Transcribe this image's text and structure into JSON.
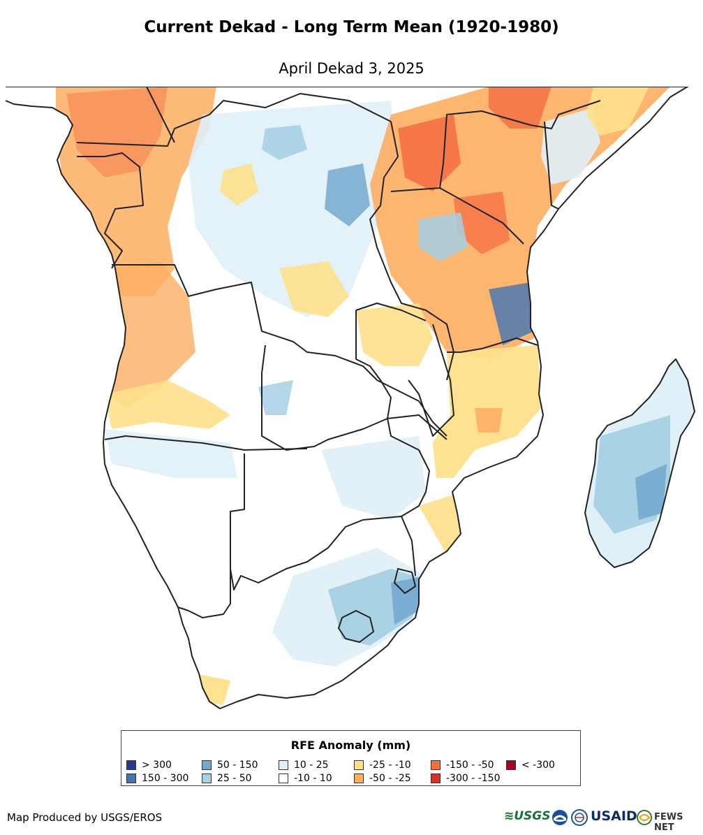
{
  "title": "Current Dekad - Long Term Mean (1920-1980)",
  "subtitle": "April Dekad 3, 2025",
  "legend": {
    "title": "RFE Anomaly (mm)",
    "items": [
      {
        "label": "> 300",
        "color": "#2c3592"
      },
      {
        "label": "150 - 300",
        "color": "#4574b4"
      },
      {
        "label": "50 - 150",
        "color": "#74a9cf"
      },
      {
        "label": "25 - 50",
        "color": "#a6d0e4"
      },
      {
        "label": "10 - 25",
        "color": "#e0f0f8"
      },
      {
        "label": "-10 - 10",
        "color": "#ffffff"
      },
      {
        "label": "-25 - -10",
        "color": "#fee08b"
      },
      {
        "label": "-50 - -25",
        "color": "#fdae61"
      },
      {
        "label": "-150 - -50",
        "color": "#f46d43"
      },
      {
        "label": "-300 - -150",
        "color": "#d73027"
      },
      {
        "label": "< -300",
        "color": "#a50026"
      }
    ]
  },
  "footer": {
    "producer": "Map Produced by USGS/EROS",
    "logos": {
      "usgs": "USGS",
      "usaid": "USAID",
      "fewsnet": "FEWS NET"
    }
  },
  "colors": {
    "border": "#222222",
    "land_base": "#ffffff"
  }
}
